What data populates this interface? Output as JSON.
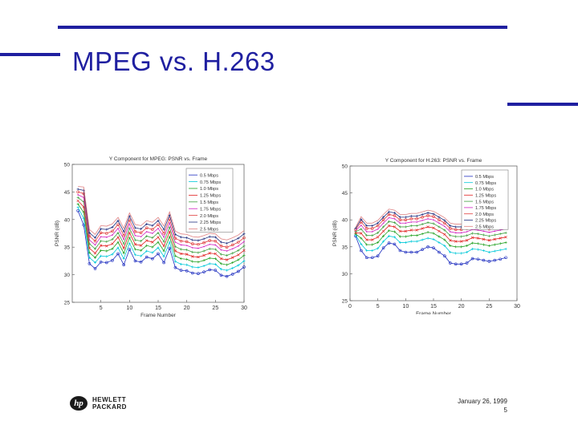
{
  "slide": {
    "title": "MPEG vs. H.263",
    "date": "January 26, 1999",
    "page_number": "5",
    "logo_line1": "HEWLETT",
    "logo_line2": "PACKARD",
    "logo_mark": "hp",
    "accent_color": "#1f1fa0"
  },
  "chart_data": [
    {
      "type": "line",
      "title": "Y Component for MPEG: PSNR vs. Frame",
      "xlabel": "Frame Number",
      "ylabel": "PSNR (dB)",
      "xlim": [
        0,
        30
      ],
      "ylim": [
        25,
        50
      ],
      "xticks": [
        5,
        10,
        15,
        20,
        25,
        30
      ],
      "yticks": [
        25,
        30,
        35,
        40,
        45,
        50
      ],
      "legend_position": "top-right",
      "x": [
        1,
        2,
        3,
        4,
        5,
        6,
        7,
        8,
        9,
        10,
        11,
        12,
        13,
        14,
        15,
        16,
        17,
        18,
        19,
        20,
        21,
        22,
        23,
        24,
        25,
        26,
        27,
        28,
        29,
        30
      ],
      "series": [
        {
          "name": "0.5 Mbps",
          "color": "#2030c0",
          "marker": "o",
          "values": [
            41.6,
            39.0,
            32.0,
            31.1,
            32.3,
            32.2,
            32.6,
            33.8,
            31.8,
            34.6,
            32.5,
            32.3,
            33.2,
            32.9,
            33.8,
            32.2,
            34.8,
            31.3,
            30.8,
            30.7,
            30.3,
            30.2,
            30.5,
            30.9,
            30.8,
            29.9,
            29.7,
            30.1,
            30.6,
            31.4
          ]
        },
        {
          "name": "0.75 Mbps",
          "color": "#00c8d8",
          "marker": "+",
          "values": [
            42.2,
            40.2,
            33.1,
            32.2,
            33.4,
            33.3,
            33.7,
            34.9,
            32.9,
            35.7,
            33.6,
            33.4,
            34.3,
            34.0,
            34.9,
            33.3,
            35.9,
            32.4,
            31.9,
            31.8,
            31.4,
            31.3,
            31.6,
            32.0,
            31.9,
            31.0,
            30.8,
            31.2,
            31.7,
            32.5
          ]
        },
        {
          "name": "1.0 Mbps",
          "color": "#20a020",
          "marker": "+",
          "values": [
            42.8,
            41.3,
            34.0,
            33.1,
            34.4,
            34.3,
            34.7,
            35.9,
            33.9,
            36.7,
            34.6,
            34.4,
            35.3,
            35.0,
            35.9,
            34.3,
            36.9,
            33.4,
            32.9,
            32.8,
            32.4,
            32.3,
            32.6,
            33.0,
            32.9,
            32.0,
            31.8,
            32.2,
            32.7,
            33.5
          ]
        },
        {
          "name": "1.25 Mbps",
          "color": "#e02020",
          "marker": "x",
          "values": [
            43.4,
            42.3,
            34.8,
            33.9,
            35.3,
            35.2,
            35.6,
            36.8,
            34.8,
            37.6,
            35.5,
            35.3,
            36.2,
            35.9,
            36.8,
            35.2,
            37.8,
            34.3,
            33.8,
            33.7,
            33.3,
            33.2,
            33.5,
            33.9,
            33.8,
            32.9,
            32.7,
            33.1,
            33.6,
            34.4
          ]
        },
        {
          "name": "1.5 Mbps",
          "color": "#40a040",
          "marker": "+",
          "values": [
            44.0,
            43.2,
            35.6,
            34.7,
            36.1,
            36.0,
            36.4,
            37.6,
            35.6,
            38.4,
            36.3,
            36.1,
            37.0,
            36.7,
            37.6,
            36.0,
            38.6,
            35.1,
            34.6,
            34.5,
            34.1,
            34.0,
            34.3,
            34.7,
            34.6,
            33.7,
            33.5,
            33.9,
            34.4,
            35.2
          ]
        },
        {
          "name": "1.75 Mbps",
          "color": "#d020c0",
          "marker": ".",
          "values": [
            44.5,
            44.0,
            36.3,
            35.4,
            36.9,
            36.8,
            37.2,
            38.4,
            36.4,
            39.2,
            37.1,
            36.9,
            37.8,
            37.5,
            38.4,
            36.8,
            39.4,
            35.9,
            35.4,
            35.3,
            34.9,
            34.8,
            35.1,
            35.5,
            35.4,
            34.5,
            34.3,
            34.7,
            35.2,
            36.0
          ]
        },
        {
          "name": "2.0 Mbps",
          "color": "#e04040",
          "marker": "o",
          "values": [
            45.0,
            44.7,
            37.0,
            36.1,
            37.6,
            37.5,
            37.9,
            39.1,
            37.1,
            39.9,
            37.8,
            37.6,
            38.5,
            38.2,
            39.1,
            37.5,
            40.1,
            36.6,
            36.1,
            36.0,
            35.6,
            35.5,
            35.8,
            36.2,
            36.1,
            35.2,
            35.0,
            35.4,
            35.9,
            36.7
          ]
        },
        {
          "name": "2.25 Mbps",
          "color": "#203080",
          "marker": "+",
          "values": [
            45.5,
            45.3,
            37.6,
            36.7,
            38.3,
            38.2,
            38.6,
            39.8,
            37.8,
            40.6,
            38.5,
            38.3,
            39.2,
            38.9,
            39.8,
            38.2,
            40.8,
            37.3,
            36.8,
            36.7,
            36.3,
            36.2,
            36.5,
            36.9,
            36.8,
            35.9,
            35.7,
            36.1,
            36.6,
            37.4
          ]
        },
        {
          "name": "2.5 Mbps",
          "color": "#e08080",
          "marker": "-",
          "values": [
            46.0,
            45.9,
            38.2,
            37.3,
            38.9,
            38.8,
            39.2,
            40.4,
            38.4,
            41.2,
            39.1,
            38.9,
            39.8,
            39.5,
            40.4,
            38.8,
            41.4,
            37.9,
            37.4,
            37.3,
            36.9,
            36.8,
            37.1,
            37.5,
            37.4,
            36.5,
            36.3,
            36.7,
            37.2,
            38.0
          ]
        }
      ]
    },
    {
      "type": "line",
      "title": "Y Component for H.263: PSNR vs. Frame",
      "xlabel": "Frame Number",
      "ylabel": "PSNR (dB)",
      "xlim": [
        0,
        30
      ],
      "ylim": [
        25,
        50
      ],
      "xticks": [
        0,
        5,
        10,
        15,
        20,
        25,
        30
      ],
      "yticks": [
        25,
        30,
        35,
        40,
        45,
        50
      ],
      "legend_position": "top-right",
      "x": [
        1,
        2,
        3,
        4,
        5,
        6,
        7,
        8,
        9,
        10,
        11,
        12,
        13,
        14,
        15,
        16,
        17,
        18,
        19,
        20,
        21,
        22,
        23,
        24,
        25,
        26,
        27,
        28
      ],
      "series": [
        {
          "name": "0.5 Mbps",
          "color": "#2030c0",
          "marker": "o",
          "values": [
            37.0,
            34.3,
            33.0,
            33.0,
            33.3,
            34.8,
            35.7,
            35.5,
            34.3,
            34.0,
            34.0,
            34.0,
            34.5,
            35.0,
            34.8,
            34.0,
            33.3,
            32.0,
            31.8,
            31.8,
            32.0,
            32.8,
            32.7,
            32.5,
            32.3,
            32.5,
            32.7,
            33.0
          ]
        },
        {
          "name": "0.75 Mbps",
          "color": "#00c8d8",
          "marker": "+",
          "values": [
            37.2,
            35.5,
            34.3,
            34.3,
            34.7,
            36.0,
            37.0,
            36.8,
            35.8,
            35.8,
            36.0,
            36.0,
            36.3,
            36.6,
            36.4,
            35.8,
            35.2,
            34.0,
            33.8,
            33.8,
            34.0,
            34.6,
            34.5,
            34.3,
            34.0,
            34.2,
            34.4,
            34.6
          ]
        },
        {
          "name": "1.0 Mbps",
          "color": "#20a020",
          "marker": "+",
          "values": [
            37.4,
            36.6,
            35.4,
            35.4,
            35.8,
            37.0,
            38.0,
            37.8,
            36.9,
            36.9,
            37.1,
            37.1,
            37.4,
            37.7,
            37.5,
            36.9,
            36.3,
            35.2,
            35.0,
            35.0,
            35.2,
            35.7,
            35.6,
            35.4,
            35.2,
            35.4,
            35.6,
            35.8
          ]
        },
        {
          "name": "1.25 Mbps",
          "color": "#e02020",
          "marker": "x",
          "values": [
            37.6,
            37.5,
            36.3,
            36.3,
            36.8,
            37.9,
            38.9,
            38.7,
            37.9,
            37.9,
            38.1,
            38.1,
            38.4,
            38.7,
            38.5,
            37.9,
            37.3,
            36.2,
            36.0,
            36.0,
            36.2,
            36.7,
            36.6,
            36.4,
            36.2,
            36.4,
            36.6,
            36.8
          ]
        },
        {
          "name": "1.5 Mbps",
          "color": "#40a040",
          "marker": "+",
          "values": [
            37.8,
            38.3,
            37.1,
            37.1,
            37.6,
            38.7,
            39.7,
            39.5,
            38.7,
            38.7,
            38.9,
            38.9,
            39.2,
            39.5,
            39.3,
            38.7,
            38.1,
            37.1,
            36.9,
            36.9,
            37.1,
            37.5,
            37.4,
            37.2,
            37.0,
            37.2,
            37.4,
            37.6
          ]
        },
        {
          "name": "1.75 Mbps",
          "color": "#d020c0",
          "marker": ".",
          "values": [
            38.0,
            39.0,
            37.8,
            37.8,
            38.3,
            39.4,
            40.4,
            40.2,
            39.4,
            39.4,
            39.6,
            39.6,
            39.9,
            40.2,
            40.0,
            39.4,
            38.8,
            37.8,
            37.6,
            37.6,
            37.8,
            38.2,
            38.1,
            37.9,
            37.7,
            37.9,
            38.1,
            38.3
          ]
        },
        {
          "name": "2.0 Mbps",
          "color": "#e04040",
          "marker": "o",
          "values": [
            38.2,
            39.6,
            38.4,
            38.4,
            38.9,
            40.0,
            41.0,
            40.8,
            40.0,
            40.0,
            40.2,
            40.2,
            40.5,
            40.8,
            40.6,
            40.0,
            39.4,
            38.4,
            38.2,
            38.2,
            38.4,
            38.8,
            38.7,
            38.5,
            38.3,
            38.5,
            38.7,
            38.9
          ]
        },
        {
          "name": "2.25 Mbps",
          "color": "#203080",
          "marker": "+",
          "values": [
            38.4,
            40.1,
            38.9,
            38.9,
            39.4,
            40.5,
            41.5,
            41.3,
            40.5,
            40.5,
            40.7,
            40.7,
            41.0,
            41.3,
            41.1,
            40.5,
            39.9,
            38.9,
            38.7,
            38.7,
            38.9,
            39.3,
            39.2,
            39.0,
            38.8,
            39.0,
            39.2,
            39.4
          ]
        },
        {
          "name": "2.5 Mbps",
          "color": "#e08080",
          "marker": "-",
          "values": [
            38.6,
            40.6,
            39.4,
            39.4,
            39.9,
            41.0,
            42.0,
            41.8,
            41.0,
            41.0,
            41.2,
            41.2,
            41.5,
            41.8,
            41.6,
            41.0,
            40.4,
            39.4,
            39.2,
            39.2,
            39.4,
            39.8,
            39.7,
            39.5,
            39.3,
            39.5,
            39.7,
            39.9
          ]
        }
      ]
    }
  ]
}
